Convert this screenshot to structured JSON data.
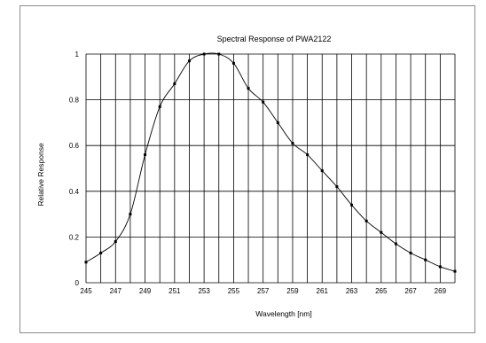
{
  "chart_data": {
    "type": "line",
    "title": "Spectral Response of PWA2122",
    "xlabel": "Wavelength [nm]",
    "ylabel": "Relative Response",
    "xlim": [
      245,
      270
    ],
    "ylim": [
      0,
      1
    ],
    "grid": true,
    "x_ticks": [
      245,
      247,
      249,
      251,
      253,
      255,
      257,
      259,
      261,
      263,
      265,
      267,
      269
    ],
    "y_ticks": [
      0,
      0.2,
      0.4,
      0.6,
      0.8,
      1
    ],
    "y_tick_labels": [
      "0",
      "0.2",
      "0.4",
      "0.6",
      "0.8",
      "1"
    ],
    "series": [
      {
        "x": [
          245.0,
          246.0,
          247.0,
          248.0,
          249.0,
          250.0,
          251.0,
          252.0,
          253.0,
          254.0,
          255.0,
          256.0,
          257.0,
          258.0,
          259.0,
          260.0,
          261.0,
          262.0,
          263.0,
          264.0,
          265.0,
          266.0,
          267.0,
          268.0,
          269.0,
          270.0
        ],
        "y": [
          0.09,
          0.13,
          0.18,
          0.3,
          0.56,
          0.77,
          0.87,
          0.97,
          1.0,
          1.0,
          0.96,
          0.85,
          0.79,
          0.7,
          0.61,
          0.56,
          0.49,
          0.42,
          0.34,
          0.27,
          0.22,
          0.17,
          0.13,
          0.1,
          0.07,
          0.05
        ]
      }
    ]
  }
}
